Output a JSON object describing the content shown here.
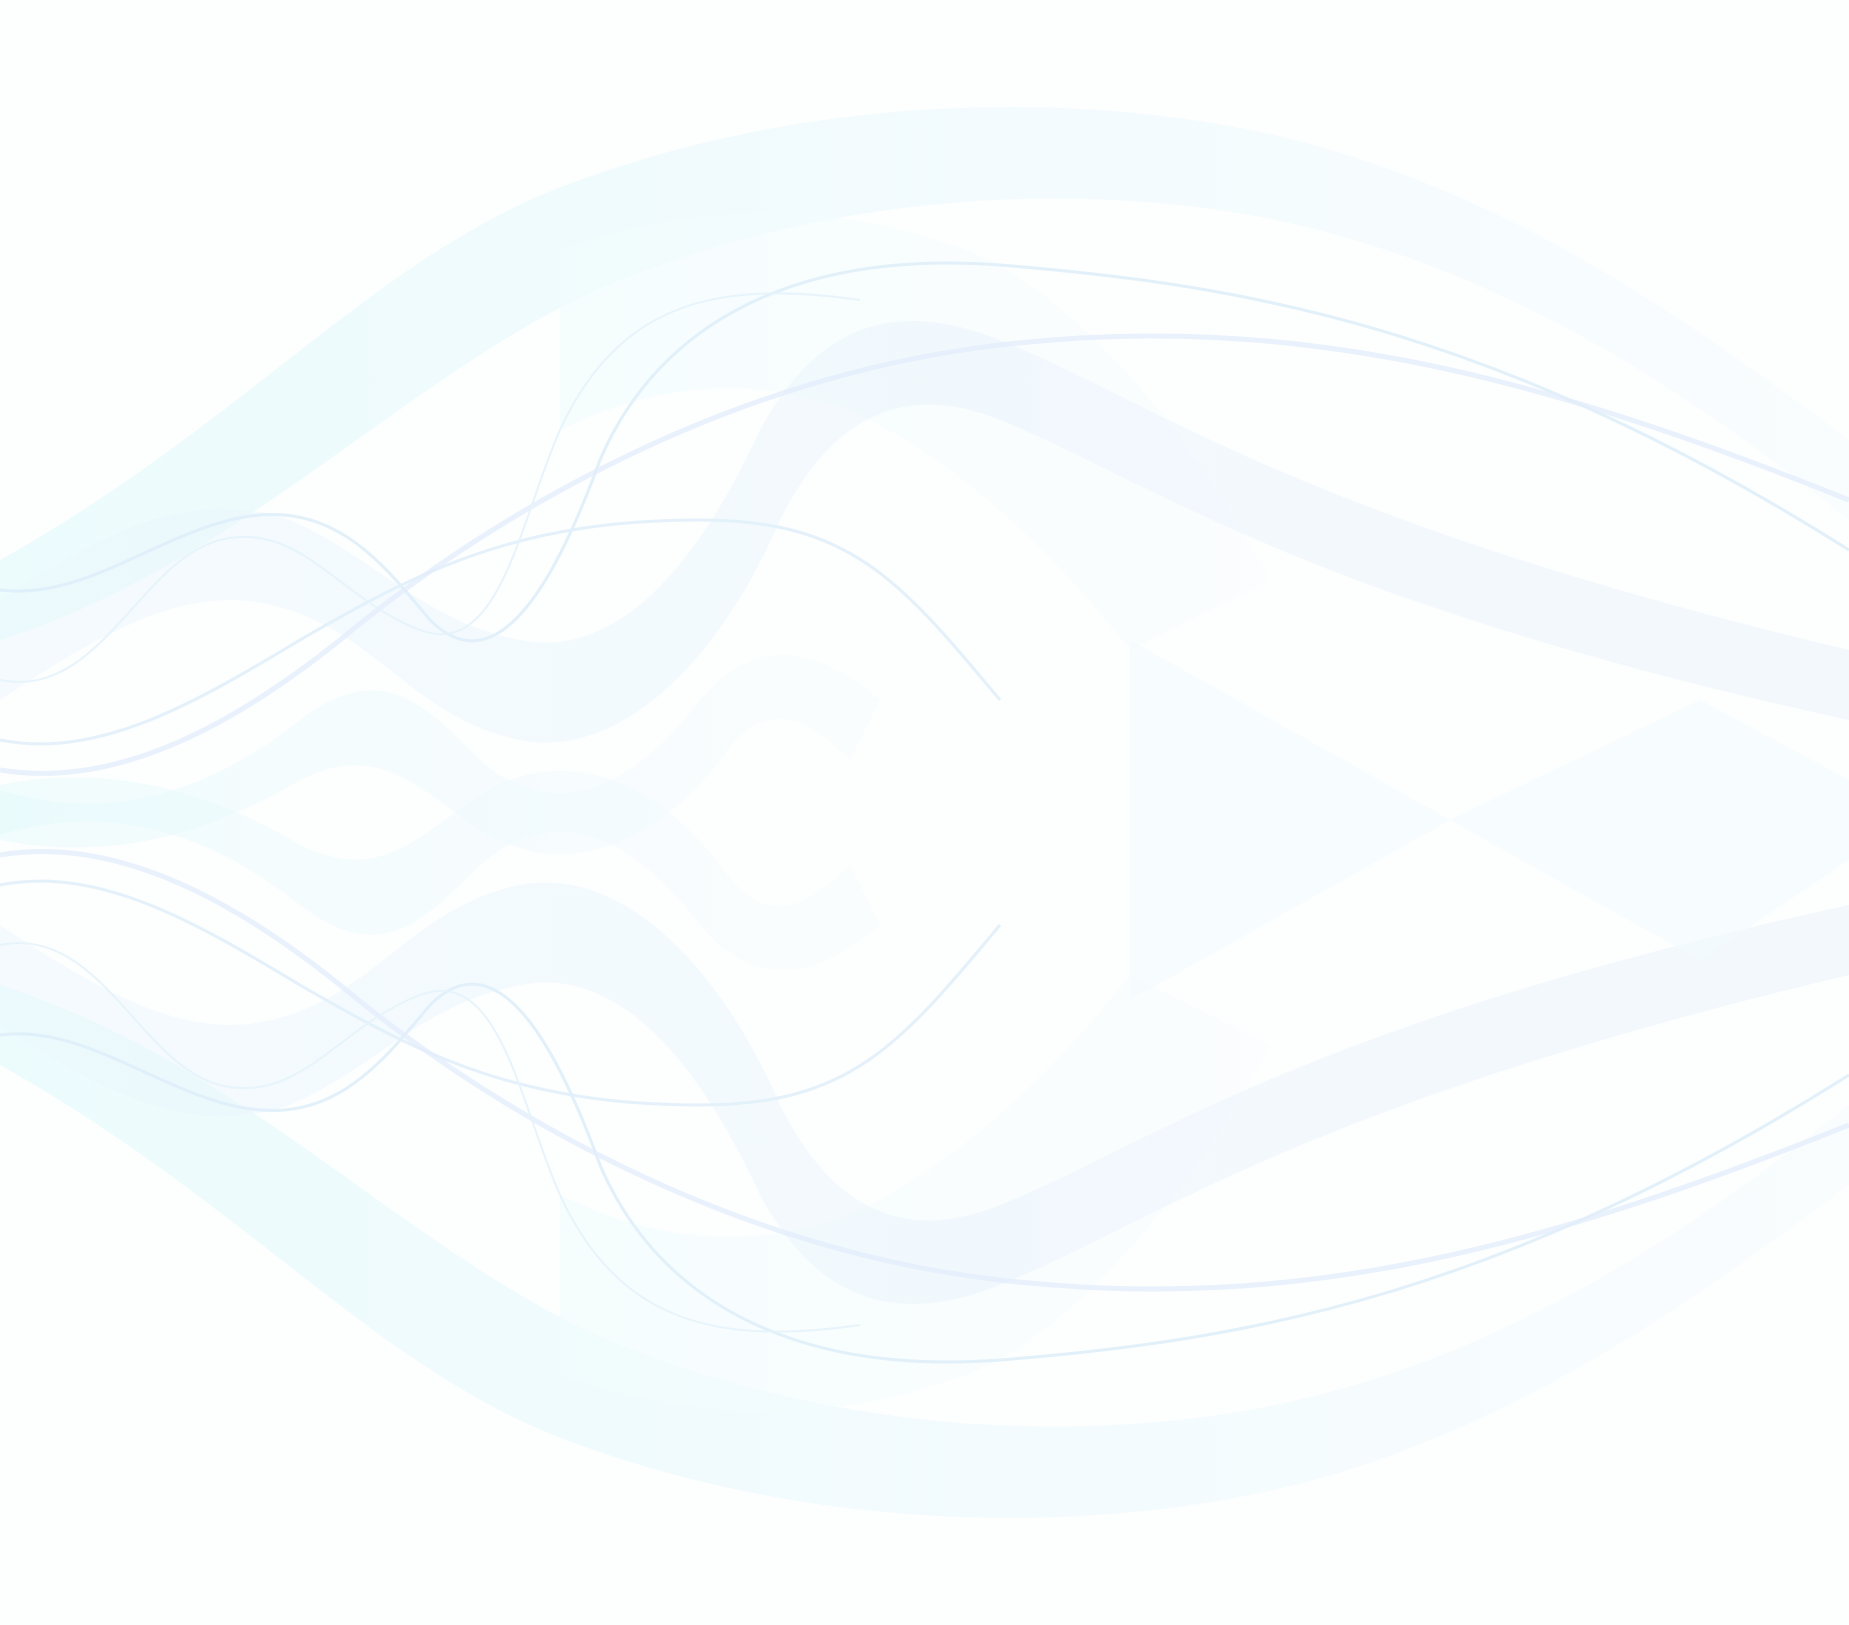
{
  "background": {
    "base_color": "#fdfefe",
    "wave_colors": [
      "#e8fbfd",
      "#eaf6fc",
      "#e9f0fb",
      "#f0fafd"
    ],
    "style": "mirrored translucent ribbon waves"
  }
}
